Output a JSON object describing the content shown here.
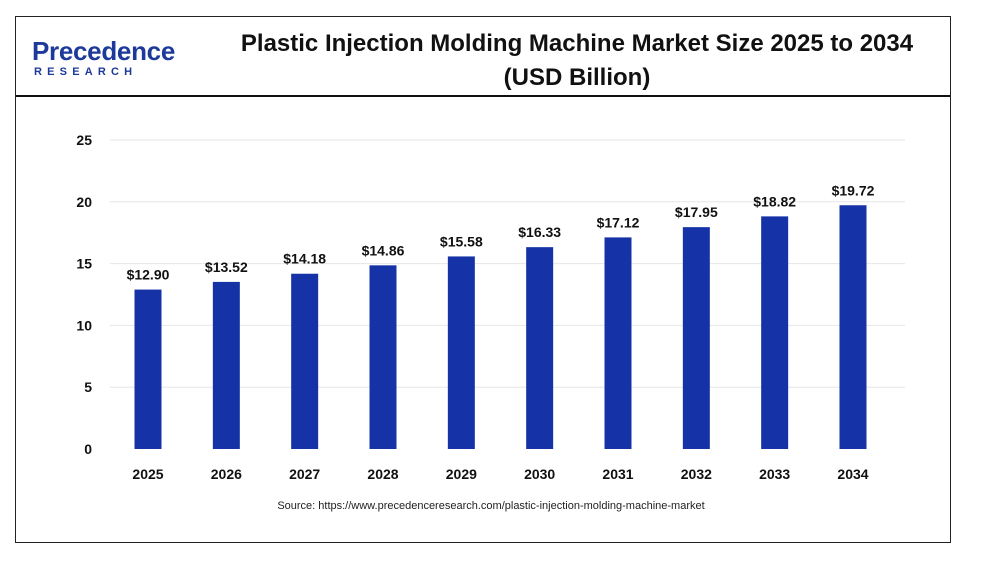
{
  "brand": {
    "logo_word": "Precedence",
    "logo_sub": "RESEARCH"
  },
  "colors": {
    "bar": "#1533a6",
    "grid": "#e6e6e6",
    "text": "#111111",
    "brand": "#1d3a9a"
  },
  "source": "Source: https://www.precedenceresearch.com/plastic-injection-molding-machine-market",
  "chart_data": {
    "type": "bar",
    "title": "Plastic Injection Molding Machine Market Size 2025 to 2034",
    "subtitle": "(USD Billion)",
    "xlabel": "",
    "ylabel": "",
    "categories": [
      "2025",
      "2026",
      "2027",
      "2028",
      "2029",
      "2030",
      "2031",
      "2032",
      "2033",
      "2034"
    ],
    "values": [
      12.9,
      13.52,
      14.18,
      14.86,
      15.58,
      16.33,
      17.12,
      17.95,
      18.82,
      19.72
    ],
    "data_labels": [
      "$12.90",
      "$13.52",
      "$14.18",
      "$14.86",
      "$15.58",
      "$16.33",
      "$17.12",
      "$17.95",
      "$18.82",
      "$19.72"
    ],
    "ylim": [
      0,
      25
    ],
    "yticks": [
      "0",
      "5",
      "10",
      "15",
      "20",
      "25"
    ],
    "grid": true,
    "legend": "none"
  }
}
